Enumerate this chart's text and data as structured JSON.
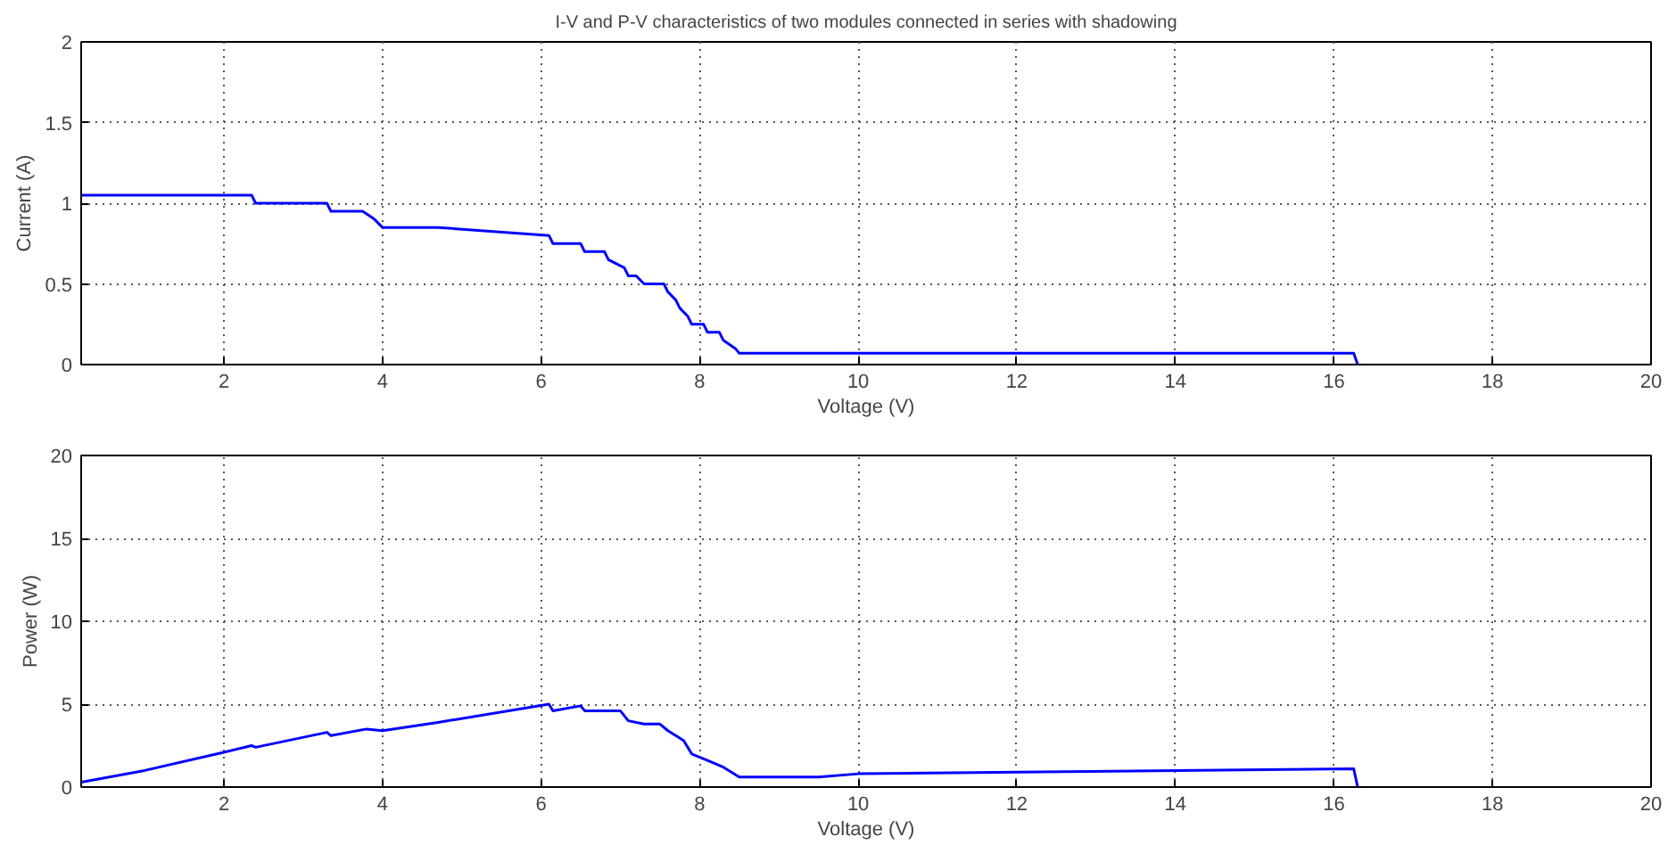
{
  "chart_data": [
    {
      "type": "line",
      "title": "I-V and P-V characteristics of two modules connected in series with shadowing",
      "xlabel": "Voltage (V)",
      "ylabel": "Current (A)",
      "xlim": [
        0.2,
        20
      ],
      "ylim": [
        0,
        2
      ],
      "xticks": [
        2,
        4,
        6,
        8,
        10,
        12,
        14,
        16,
        18,
        20
      ],
      "yticks": [
        0,
        0.5,
        1,
        1.5,
        2
      ],
      "grid": true,
      "series": [
        {
          "color": "#0000ff",
          "x": [
            0.2,
            2.35,
            2.4,
            3.3,
            3.35,
            3.75,
            3.9,
            4.0,
            4.7,
            6.1,
            6.15,
            6.5,
            6.55,
            6.8,
            6.85,
            7.05,
            7.1,
            7.2,
            7.3,
            7.55,
            7.6,
            7.7,
            7.75,
            7.85,
            7.9,
            8.05,
            8.1,
            8.25,
            8.3,
            8.45,
            8.5,
            16.25,
            16.3
          ],
          "values": [
            1.05,
            1.05,
            1.0,
            1.0,
            0.95,
            0.95,
            0.9,
            0.85,
            0.85,
            0.8,
            0.75,
            0.75,
            0.7,
            0.7,
            0.65,
            0.6,
            0.55,
            0.55,
            0.5,
            0.5,
            0.45,
            0.4,
            0.35,
            0.3,
            0.25,
            0.25,
            0.2,
            0.2,
            0.15,
            0.1,
            0.07,
            0.07,
            0
          ]
        }
      ]
    },
    {
      "type": "line",
      "xlabel": "Voltage (V)",
      "ylabel": "Power (W)",
      "xlim": [
        0.2,
        20
      ],
      "ylim": [
        0,
        20
      ],
      "xticks": [
        2,
        4,
        6,
        8,
        10,
        12,
        14,
        16,
        18,
        20
      ],
      "yticks": [
        0,
        5,
        10,
        15,
        20
      ],
      "grid": true,
      "series": [
        {
          "color": "#0000ff",
          "x": [
            0.2,
            1.0,
            2.0,
            2.35,
            2.4,
            3.3,
            3.35,
            3.8,
            4.0,
            4.7,
            6.1,
            6.15,
            6.5,
            6.55,
            7.0,
            7.1,
            7.3,
            7.5,
            7.6,
            7.8,
            7.9,
            8.1,
            8.3,
            8.5,
            9.5,
            10.0,
            12.0,
            14.0,
            16.25,
            16.3
          ],
          "values": [
            0.3,
            1.0,
            2.1,
            2.5,
            2.4,
            3.3,
            3.1,
            3.5,
            3.4,
            3.9,
            5.0,
            4.6,
            4.9,
            4.6,
            4.6,
            4.0,
            3.8,
            3.8,
            3.4,
            2.8,
            2.0,
            1.6,
            1.2,
            0.6,
            0.6,
            0.8,
            0.9,
            1.0,
            1.1,
            0
          ]
        }
      ]
    }
  ]
}
